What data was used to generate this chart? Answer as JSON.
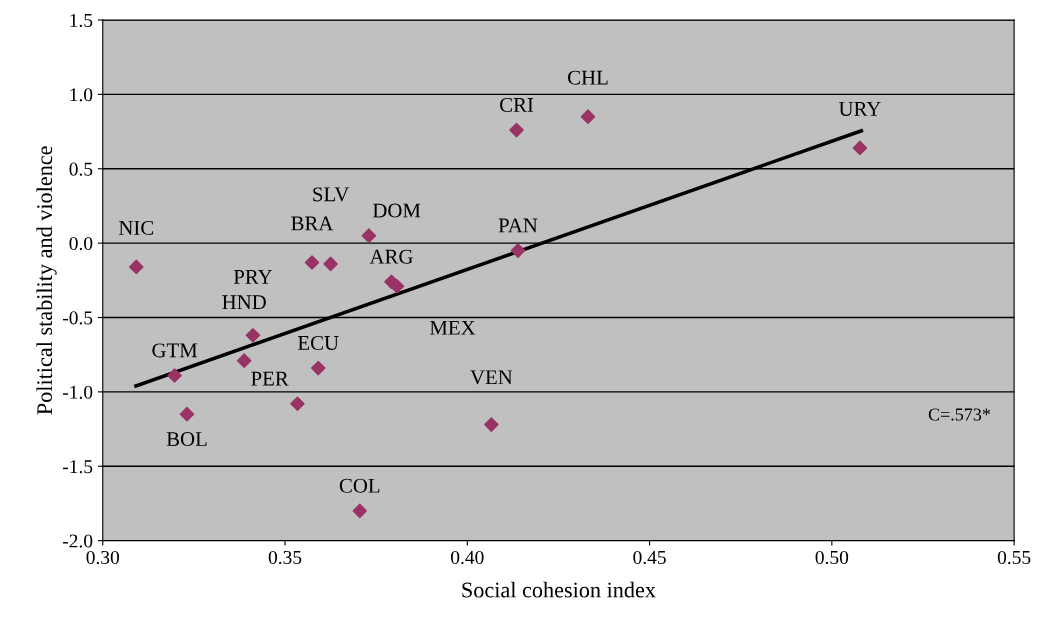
{
  "chart_data": {
    "type": "scatter",
    "xlabel": "Social cohesion index",
    "ylabel": "Political stability and violence",
    "xlim": [
      0.3,
      0.55
    ],
    "xticks": [
      {
        "value": 0.3,
        "label": "0.30"
      },
      {
        "value": 0.35,
        "label": "0.35"
      },
      {
        "value": 0.4,
        "label": "0.40"
      },
      {
        "value": 0.45,
        "label": "0.45"
      },
      {
        "value": 0.5,
        "label": "0.50"
      },
      {
        "value": 0.55,
        "label": "0.55"
      }
    ],
    "ylim": [
      -2.0,
      1.5
    ],
    "yticks": [
      {
        "value": -2.0,
        "label": "-2.0"
      },
      {
        "value": -1.5,
        "label": "-1.5"
      },
      {
        "value": -1.0,
        "label": "-1.0"
      },
      {
        "value": -0.5,
        "label": "-0.5"
      },
      {
        "value": 0.0,
        "label": "0.0"
      },
      {
        "value": 0.5,
        "label": "0.5"
      },
      {
        "value": 1.0,
        "label": "1.0"
      },
      {
        "value": 1.5,
        "label": "1.5"
      }
    ],
    "grid": "y",
    "marker": "diamond",
    "legend": false,
    "series": [
      {
        "color": "#993366",
        "x": [
          0.3092,
          0.3197,
          0.3231,
          0.3388,
          0.3412,
          0.3534,
          0.3591,
          0.3574,
          0.3625,
          0.373,
          0.3705,
          0.3792,
          0.3807,
          0.4135,
          0.4331,
          0.5077,
          0.4139,
          0.4066
        ],
        "values": [
          -0.16,
          -0.89,
          -1.15,
          -0.79,
          -0.62,
          -1.08,
          -0.84,
          -0.13,
          -0.14,
          0.05,
          -1.8,
          -0.26,
          -0.29,
          0.76,
          0.85,
          0.64,
          -0.05,
          -1.22
        ]
      },
      {
        "type": "line",
        "marker": "none",
        "color": "#000000",
        "x": [
          0.3091,
          0.5081
        ],
        "values": [
          -0.96,
          0.755
        ]
      }
    ],
    "annotations": [
      {
        "text": "NIC",
        "x": 0.3092,
        "y": -0.16
      },
      {
        "text": "GTM",
        "x": 0.3197,
        "y": -0.89
      },
      {
        "text": "BOL",
        "x": 0.3231,
        "y": -1.15
      },
      {
        "text": "HND",
        "x": 0.3388,
        "y": -0.79
      },
      {
        "text": "PRY",
        "x": 0.3412,
        "y": -0.62
      },
      {
        "text": "PER",
        "x": 0.3534,
        "y": -1.08
      },
      {
        "text": "ECU",
        "x": 0.3591,
        "y": -0.84
      },
      {
        "text": "BRA",
        "x": 0.3574,
        "y": -0.13
      },
      {
        "text": "SLV",
        "x": 0.3625,
        "y": -0.14
      },
      {
        "text": "DOM",
        "x": 0.373,
        "y": 0.05
      },
      {
        "text": "COL",
        "x": 0.3705,
        "y": -1.8
      },
      {
        "text": "ARG",
        "x": 0.3792,
        "y": -0.26
      },
      {
        "text": "MEX",
        "x": 0.3807,
        "y": -0.29
      },
      {
        "text": "CRI",
        "x": 0.4135,
        "y": 0.76
      },
      {
        "text": "CHL",
        "x": 0.4331,
        "y": 0.85
      },
      {
        "text": "URY",
        "x": 0.5077,
        "y": 0.64
      },
      {
        "text": "PAN",
        "x": 0.4139,
        "y": -0.05
      },
      {
        "text": "VEN",
        "x": 0.4066,
        "y": -1.22
      },
      "C=.573*"
    ]
  }
}
